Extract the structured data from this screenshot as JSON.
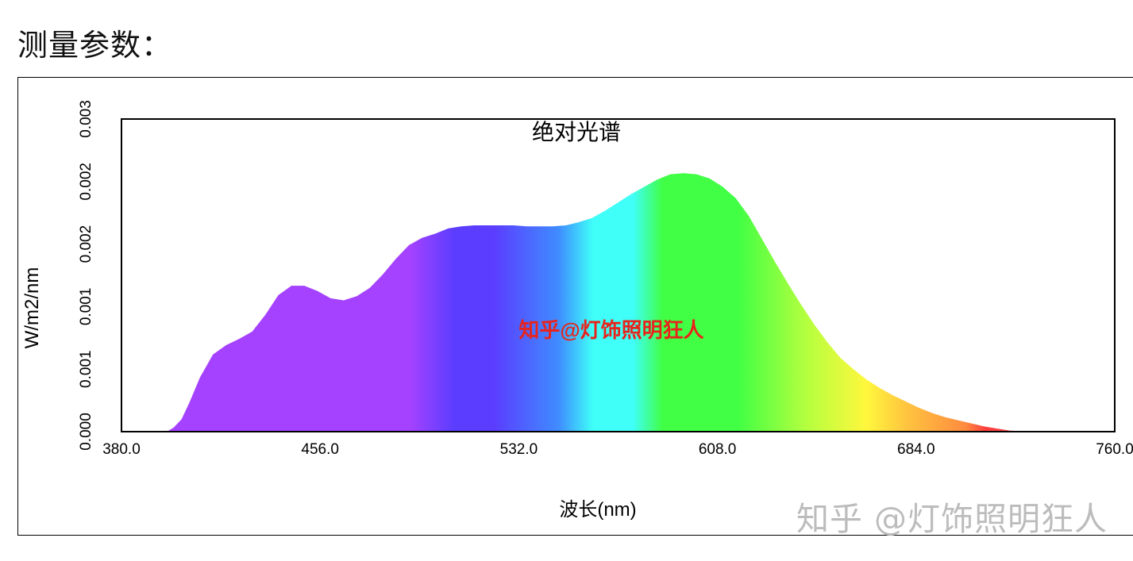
{
  "heading": "测量参数：",
  "watermark_bottom": "知乎 @灯饰照明狂人",
  "chart_data": {
    "type": "area",
    "title": "绝对光谱",
    "xlabel": "波长(nm)",
    "ylabel": "W/m2/nm",
    "watermark": "知乎@灯饰照明狂人",
    "xlim": [
      380,
      760
    ],
    "ylim": [
      0,
      0.003
    ],
    "x_ticks": [
      "380.0",
      "456.0",
      "532.0",
      "608.0",
      "684.0",
      "760.0"
    ],
    "y_tick_labels": [
      "0.000",
      "0.001",
      "0.001",
      "0.002",
      "0.002",
      "0.003"
    ],
    "y_tick_values": [
      0,
      0.0006,
      0.0012,
      0.0018,
      0.0024,
      0.003
    ],
    "x": [
      380,
      390,
      395,
      398,
      400,
      403,
      406,
      410,
      415,
      420,
      425,
      430,
      435,
      440,
      445,
      450,
      455,
      460,
      465,
      470,
      475,
      480,
      485,
      490,
      495,
      500,
      505,
      510,
      515,
      520,
      525,
      530,
      535,
      540,
      545,
      550,
      555,
      560,
      565,
      570,
      575,
      580,
      585,
      590,
      595,
      600,
      605,
      610,
      615,
      620,
      625,
      630,
      635,
      640,
      645,
      650,
      655,
      660,
      665,
      670,
      675,
      680,
      685,
      690,
      695,
      700,
      705,
      710,
      715,
      720,
      725,
      730,
      735,
      740,
      745,
      750,
      755,
      760
    ],
    "y": [
      0,
      0,
      2e-06,
      1e-05,
      4e-05,
      0.00012,
      0.00028,
      0.00052,
      0.00074,
      0.00083,
      0.00089,
      0.00096,
      0.00112,
      0.00131,
      0.0014,
      0.0014,
      0.00135,
      0.00128,
      0.00126,
      0.0013,
      0.00138,
      0.00151,
      0.00166,
      0.00179,
      0.00186,
      0.0019,
      0.00195,
      0.00197,
      0.00198,
      0.00198,
      0.00198,
      0.00198,
      0.00197,
      0.00197,
      0.00197,
      0.00198,
      0.00201,
      0.00205,
      0.00212,
      0.0022,
      0.00228,
      0.00235,
      0.00242,
      0.00247,
      0.00248,
      0.00247,
      0.00243,
      0.00235,
      0.00224,
      0.00207,
      0.00185,
      0.00163,
      0.00142,
      0.00122,
      0.00103,
      0.00086,
      0.00071,
      0.0006,
      0.0005,
      0.00042,
      0.00035,
      0.00029,
      0.00023,
      0.00018,
      0.00014,
      0.00011,
      8e-05,
      5e-05,
      3e-05,
      1e-05,
      5e-06,
      2e-06,
      0,
      0,
      0,
      0,
      0,
      0
    ],
    "grid": false,
    "legend": "none",
    "colors": {
      "violet": "#a542ff",
      "blue": "#5b3dff",
      "blue2": "#3f8cff",
      "cyan": "#3ffff8",
      "green": "#40ff44",
      "yellow": "#fff73d",
      "orange": "#ff8b3f",
      "red": "#ff3f3f",
      "dark_red": "#b33a3a",
      "watermark": "#e8231b"
    }
  }
}
